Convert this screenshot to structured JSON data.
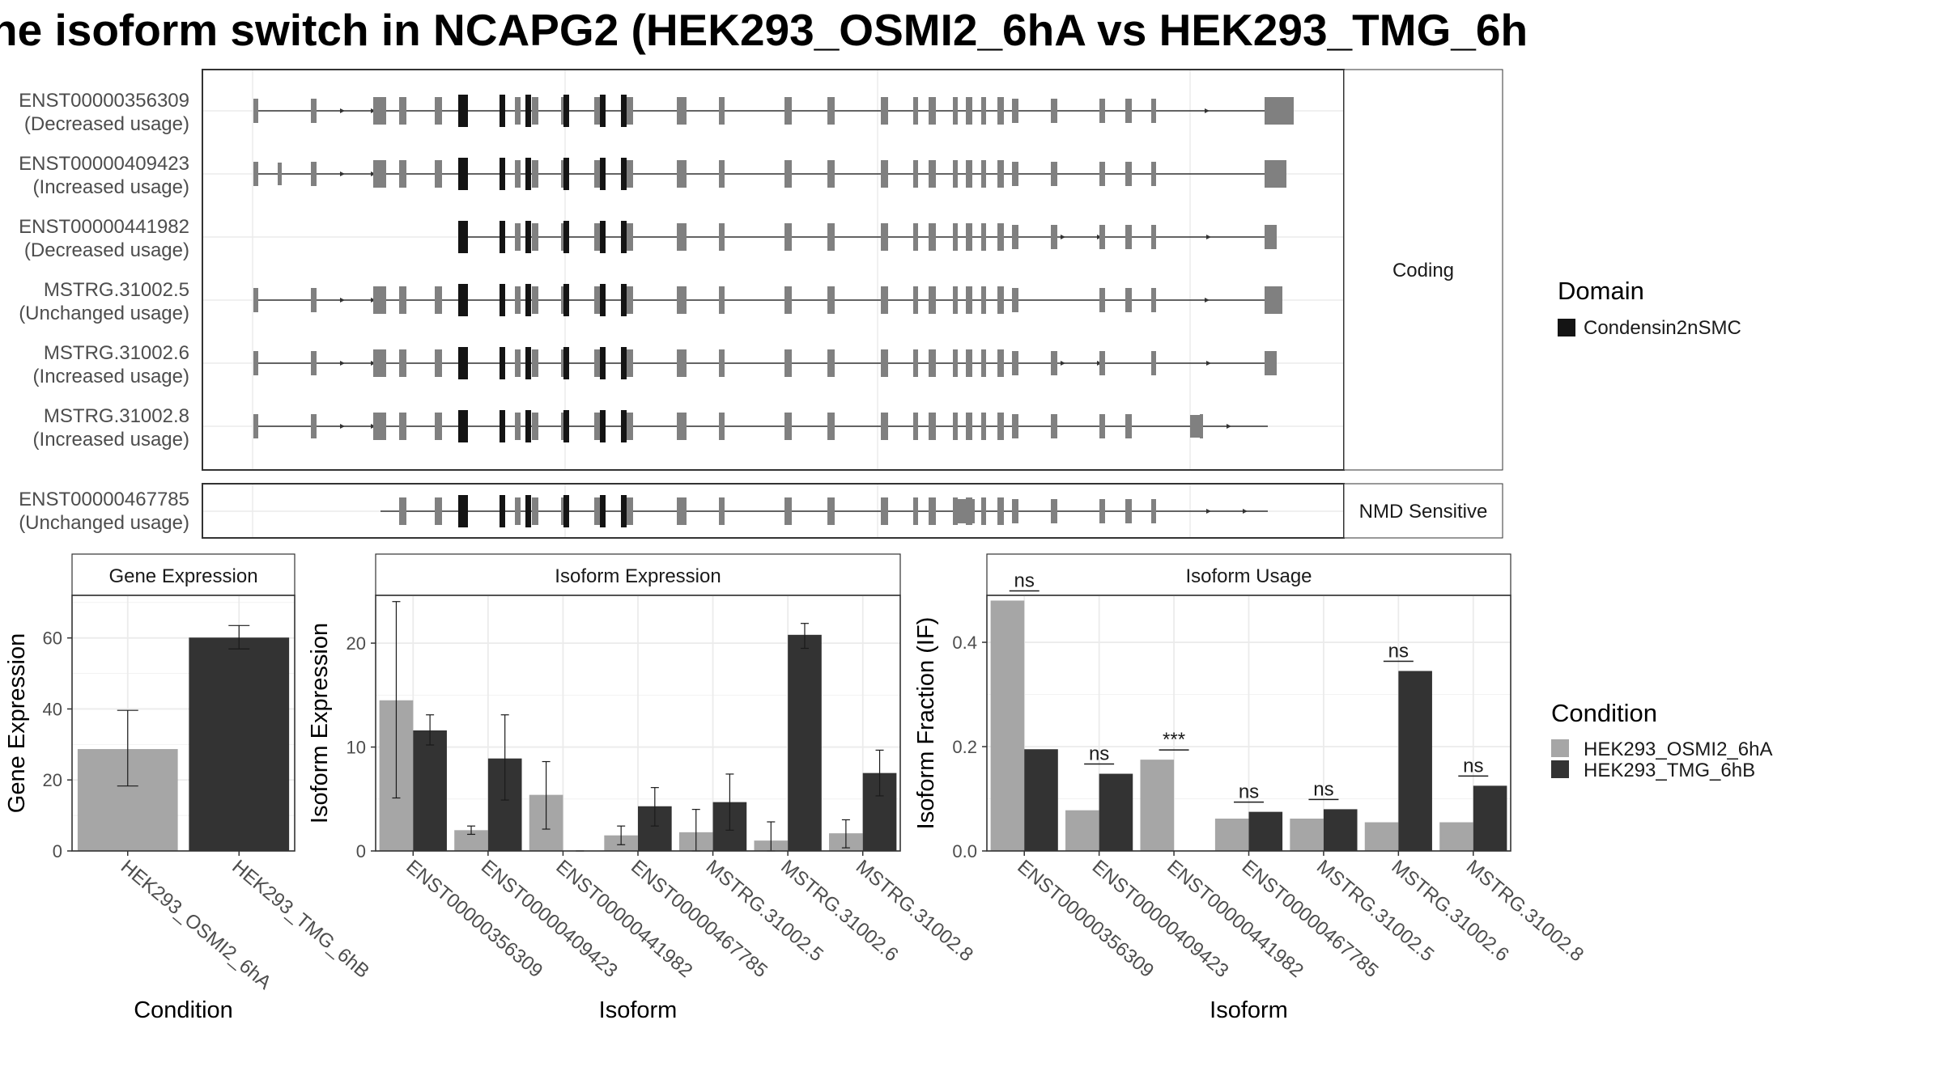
{
  "title": "ne isoform switch in NCAPG2 (HEK293_OSMI2_6hA vs HEK293_TMG_6h",
  "colors": {
    "exon": "#808080",
    "domain": "#141414",
    "cond_a": "#a6a6a6",
    "cond_b": "#333333",
    "panel_border": "#333333",
    "strip_bg": "#ffffff",
    "grid": "#ebebeb",
    "intron": "#333333"
  },
  "transcript_panel": {
    "groups": [
      {
        "label": "Coding",
        "transcripts": [
          {
            "id": "ENST00000356309",
            "usage": "(Decreased usage)"
          },
          {
            "id": "ENST00000409423",
            "usage": "(Increased usage)"
          },
          {
            "id": "ENST00000441982",
            "usage": "(Decreased usage)"
          },
          {
            "id": "MSTRG.31002.5",
            "usage": "(Unchanged usage)"
          },
          {
            "id": "MSTRG.31002.6",
            "usage": "(Increased usage)"
          },
          {
            "id": "MSTRG.31002.8",
            "usage": "(Increased usage)"
          }
        ]
      },
      {
        "label": "NMD Sensitive",
        "transcripts": [
          {
            "id": "ENST00000467785",
            "usage": "(Unchanged usage)"
          }
        ]
      }
    ]
  },
  "legend_domain": {
    "title": "Domain",
    "items": [
      "Condensin2nSMC"
    ]
  },
  "legend_condition": {
    "title": "Condition",
    "items": [
      "HEK293_OSMI2_6hA",
      "HEK293_TMG_6hB"
    ]
  },
  "chart_data": [
    {
      "type": "bar",
      "title": "Gene Expression",
      "xlabel": "Condition",
      "ylabel": "Gene Expression",
      "ylim": [
        0,
        72
      ],
      "yticks": [
        0,
        20,
        40,
        60
      ],
      "categories": [
        "HEK293_OSMI2_6hA",
        "HEK293_TMG_6hB"
      ],
      "values": [
        28.7,
        60.1
      ],
      "error_low": [
        18.3,
        56.9
      ],
      "error_high": [
        39.6,
        63.5
      ],
      "grid": true
    },
    {
      "type": "bar",
      "title": "Isoform Expression",
      "xlabel": "Isoform",
      "ylabel": "Isoform Expression",
      "ylim": [
        0,
        24.6
      ],
      "yticks": [
        0,
        10,
        20
      ],
      "categories": [
        "ENST00000356309",
        "ENST00000409423",
        "ENST00000441982",
        "ENST00000467785",
        "MSTRG.31002.5",
        "MSTRG.31002.6",
        "MSTRG.31002.8"
      ],
      "series": [
        {
          "name": "HEK293_OSMI2_6hA",
          "values": [
            14.5,
            2.0,
            5.4,
            1.5,
            1.8,
            1.0,
            1.7
          ],
          "error_low": [
            5.1,
            1.6,
            2.1,
            0.6,
            0.0,
            0.0,
            0.3
          ],
          "error_high": [
            24.0,
            2.4,
            8.6,
            2.4,
            4.0,
            2.8,
            3.0
          ]
        },
        {
          "name": "HEK293_TMG_6hB",
          "values": [
            11.6,
            8.9,
            0.0,
            4.3,
            4.7,
            20.8,
            7.5
          ],
          "error_low": [
            10.2,
            4.9,
            0.0,
            2.4,
            2.0,
            19.5,
            5.3
          ],
          "error_high": [
            13.1,
            13.1,
            0.0,
            6.1,
            7.4,
            21.9,
            9.7
          ]
        }
      ],
      "grid": true
    },
    {
      "type": "bar",
      "title": "Isoform Usage",
      "xlabel": "Isoform",
      "ylabel": "Isoform Fraction (IF)",
      "ylim": [
        0,
        0.49
      ],
      "yticks": [
        0.0,
        0.2,
        0.4
      ],
      "ytick_labels": [
        "0.0",
        "0.2",
        "0.4"
      ],
      "categories": [
        "ENST00000356309",
        "ENST00000409423",
        "ENST00000441982",
        "ENST00000467785",
        "MSTRG.31002.5",
        "MSTRG.31002.6",
        "MSTRG.31002.8"
      ],
      "series": [
        {
          "name": "HEK293_OSMI2_6hA",
          "values": [
            0.48,
            0.078,
            0.175,
            0.062,
            0.062,
            0.055,
            0.055
          ]
        },
        {
          "name": "HEK293_TMG_6hB",
          "values": [
            0.195,
            0.148,
            0.0,
            0.075,
            0.08,
            0.345,
            0.125
          ]
        }
      ],
      "significance": [
        "ns",
        "ns",
        "***",
        "ns",
        "ns",
        "ns",
        "ns"
      ],
      "grid": true
    }
  ]
}
